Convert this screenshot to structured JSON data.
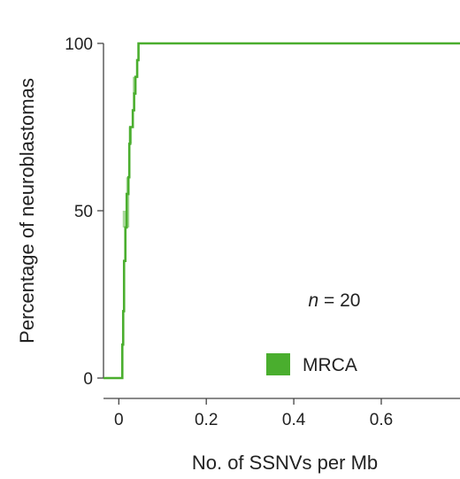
{
  "chart_data": {
    "type": "line",
    "title": "",
    "xlabel": "No. of SSNVs per Mb",
    "ylabel": "Percentage of neuroblastomas",
    "xlim": [
      -0.035,
      0.78
    ],
    "ylim": [
      0,
      100
    ],
    "x_ticks": [
      0,
      0.2,
      0.4,
      0.6
    ],
    "x_tick_labels": [
      "0",
      "0.2",
      "0.4",
      "0.6"
    ],
    "y_ticks": [
      0,
      50,
      100
    ],
    "y_tick_labels": [
      "0",
      "50",
      "100"
    ],
    "grid": false,
    "legend_position": "bottom-right",
    "annotation": {
      "italic": "n",
      "rest": " = 20"
    },
    "series": [
      {
        "name": "MRCA",
        "color": "#4aae2e",
        "step": true,
        "x": [
          -0.035,
          0.005,
          0.008,
          0.01,
          0.012,
          0.015,
          0.018,
          0.02,
          0.022,
          0.024,
          0.026,
          0.029,
          0.032,
          0.035,
          0.038,
          0.042,
          0.045,
          0.78
        ],
        "y": [
          0,
          0,
          10,
          20,
          35,
          45,
          55,
          55,
          60,
          70,
          75,
          75,
          80,
          85,
          90,
          95,
          100,
          100
        ]
      }
    ],
    "ci_band": {
      "color": "#a8d89a",
      "x": [
        0.012,
        0.02,
        0.026,
        0.035
      ],
      "y_low": [
        45,
        45,
        70,
        85
      ],
      "y_high": [
        50,
        60,
        75,
        90
      ]
    }
  }
}
